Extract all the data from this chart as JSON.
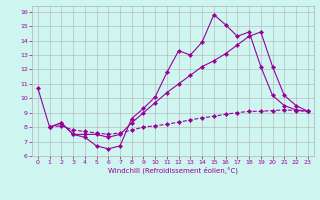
{
  "xlabel": "Windchill (Refroidissement éolien,°C)",
  "background_color": "#cef5f0",
  "grid_color": "#b0b0b0",
  "line_color": "#990099",
  "xlim": [
    -0.5,
    23.5
  ],
  "ylim": [
    6,
    16.4
  ],
  "xticks": [
    0,
    1,
    2,
    3,
    4,
    5,
    6,
    7,
    8,
    9,
    10,
    11,
    12,
    13,
    14,
    15,
    16,
    17,
    18,
    19,
    20,
    21,
    22,
    23
  ],
  "yticks": [
    6,
    7,
    8,
    9,
    10,
    11,
    12,
    13,
    14,
    15,
    16
  ],
  "line1_x": [
    0,
    1,
    2,
    3,
    4,
    5,
    6,
    7,
    8,
    9,
    10,
    11,
    12,
    13,
    14,
    15,
    16,
    17,
    18,
    19,
    20,
    21,
    22,
    23
  ],
  "line1_y": [
    10.7,
    8.0,
    8.3,
    7.5,
    7.3,
    6.7,
    6.5,
    6.7,
    8.6,
    9.3,
    10.1,
    11.8,
    13.3,
    13.0,
    13.9,
    15.8,
    15.1,
    14.3,
    14.6,
    12.2,
    10.2,
    9.5,
    9.2,
    9.1
  ],
  "line2_x": [
    1,
    2,
    3,
    4,
    5,
    6,
    7,
    8,
    9,
    10,
    11,
    12,
    13,
    14,
    15,
    16,
    17,
    18,
    19,
    20,
    21,
    22,
    23
  ],
  "line2_y": [
    8.0,
    8.3,
    7.5,
    7.5,
    7.5,
    7.3,
    7.5,
    8.3,
    9.0,
    9.7,
    10.4,
    11.0,
    11.6,
    12.2,
    12.6,
    13.1,
    13.7,
    14.3,
    14.6,
    12.2,
    10.2,
    9.5,
    9.1
  ],
  "line3_x": [
    1,
    2,
    3,
    4,
    5,
    6,
    7,
    8,
    9,
    10,
    11,
    12,
    13,
    14,
    15,
    16,
    17,
    18,
    19,
    20,
    21,
    22,
    23
  ],
  "line3_y": [
    8.0,
    8.1,
    7.8,
    7.7,
    7.6,
    7.5,
    7.6,
    7.8,
    8.0,
    8.1,
    8.2,
    8.35,
    8.5,
    8.65,
    8.75,
    8.9,
    9.0,
    9.1,
    9.1,
    9.15,
    9.2,
    9.15,
    9.1
  ]
}
